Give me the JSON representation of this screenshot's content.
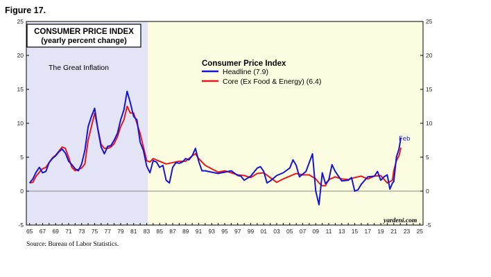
{
  "figure_label": "Figure 17.",
  "source": "Source: Bureau of Labor Statistics.",
  "chart_data": {
    "type": "line",
    "title": "CONSUMER PRICE INDEX",
    "subtitle": "(yearly percent change)",
    "legend_title": "Consumer Price Index",
    "legend_position": "top-center",
    "shaded_region_label": "The Great Inflation",
    "shaded_region": [
      1965,
      1983.2
    ],
    "credit": "yardeni.com",
    "end_annotation": "Feb",
    "ylim": [
      -5,
      25
    ],
    "xlim": [
      1964.5,
      2025.5
    ],
    "grid": false,
    "y_ticks": [
      "-5",
      "0",
      "5",
      "10",
      "15",
      "20",
      "25"
    ],
    "x_tick_labels": [
      "65",
      "67",
      "69",
      "71",
      "73",
      "75",
      "77",
      "79",
      "81",
      "83",
      "85",
      "87",
      "89",
      "91",
      "93",
      "95",
      "97",
      "99",
      "01",
      "03",
      "05",
      "07",
      "09",
      "11",
      "13",
      "15",
      "17",
      "19",
      "21",
      "23",
      "25"
    ],
    "colors": {
      "headline": "#1414d2",
      "core": "#e8161b",
      "shade_left": "#e4e4f7",
      "shade_right": "#fcfce0",
      "zero_line": "#888888"
    },
    "series": [
      {
        "name": "Headline (7.9)",
        "color": "#1414d2",
        "x": [
          1965.0,
          1965.5,
          1966.0,
          1966.5,
          1967.0,
          1967.5,
          1968.0,
          1968.5,
          1969.0,
          1969.5,
          1970.0,
          1970.5,
          1971.0,
          1971.5,
          1972.0,
          1972.5,
          1973.0,
          1973.5,
          1974.0,
          1974.5,
          1975.0,
          1975.5,
          1976.0,
          1976.5,
          1977.0,
          1977.5,
          1978.0,
          1978.5,
          1979.0,
          1979.5,
          1980.0,
          1980.5,
          1981.0,
          1981.5,
          1982.0,
          1982.5,
          1983.0,
          1983.5,
          1984.0,
          1984.5,
          1985.0,
          1985.5,
          1986.0,
          1986.5,
          1987.0,
          1987.5,
          1988.0,
          1988.5,
          1989.0,
          1989.5,
          1990.0,
          1990.5,
          1991.0,
          1991.5,
          1992.0,
          1993.0,
          1994.0,
          1995.0,
          1996.0,
          1997.0,
          1997.5,
          1998.0,
          1999.0,
          2000.0,
          2000.5,
          2001.0,
          2001.5,
          2002.0,
          2003.0,
          2004.0,
          2005.0,
          2005.5,
          2006.0,
          2006.5,
          2007.0,
          2007.5,
          2008.0,
          2008.5,
          2009.0,
          2009.5,
          2010.0,
          2010.5,
          2011.0,
          2011.5,
          2012.0,
          2013.0,
          2014.0,
          2014.5,
          2015.0,
          2015.5,
          2016.0,
          2017.0,
          2018.0,
          2018.5,
          2019.0,
          2019.5,
          2020.0,
          2020.4,
          2020.8,
          2021.0,
          2021.4,
          2021.8,
          2022.1
        ],
        "values": [
          1.2,
          1.8,
          2.8,
          3.5,
          2.7,
          2.9,
          4.2,
          4.8,
          5.2,
          5.8,
          6.2,
          5.6,
          4.4,
          3.9,
          3.3,
          3.0,
          4.0,
          6.0,
          9.5,
          11.0,
          12.2,
          9.1,
          6.5,
          5.5,
          6.6,
          6.7,
          7.5,
          8.5,
          10.5,
          12.0,
          14.7,
          13.0,
          11.0,
          10.5,
          7.2,
          6.0,
          3.7,
          2.7,
          4.5,
          4.3,
          3.5,
          3.8,
          1.6,
          1.2,
          3.5,
          4.2,
          4.1,
          4.3,
          4.8,
          4.6,
          5.2,
          6.3,
          4.4,
          3.0,
          3.0,
          2.8,
          2.6,
          2.8,
          3.0,
          2.3,
          2.2,
          1.6,
          2.2,
          3.4,
          3.6,
          2.9,
          1.2,
          1.5,
          2.3,
          2.7,
          3.4,
          4.6,
          3.8,
          2.1,
          2.5,
          2.9,
          4.2,
          5.5,
          0.0,
          -2.0,
          2.7,
          1.1,
          1.6,
          3.9,
          2.9,
          1.5,
          1.6,
          2.0,
          0.0,
          0.2,
          1.0,
          2.1,
          2.2,
          2.9,
          1.6,
          2.1,
          2.4,
          0.3,
          1.2,
          1.4,
          5.0,
          6.2,
          7.9
        ]
      },
      {
        "name": "Core (Ex Food & Energy) (6.4)",
        "color": "#e8161b",
        "x": [
          1965.0,
          1965.5,
          1966.0,
          1966.5,
          1967.0,
          1967.5,
          1968.0,
          1968.5,
          1969.0,
          1969.5,
          1970.0,
          1970.5,
          1971.0,
          1971.5,
          1972.0,
          1972.5,
          1973.0,
          1973.5,
          1974.0,
          1974.5,
          1975.0,
          1975.5,
          1976.0,
          1976.5,
          1977.0,
          1977.5,
          1978.0,
          1978.5,
          1979.0,
          1979.5,
          1980.0,
          1980.5,
          1981.0,
          1981.5,
          1982.0,
          1982.5,
          1983.0,
          1983.5,
          1984.0,
          1985.0,
          1986.0,
          1987.0,
          1988.0,
          1989.0,
          1990.0,
          1990.5,
          1991.0,
          1992.0,
          1993.0,
          1994.0,
          1995.0,
          1996.0,
          1997.0,
          1998.0,
          1999.0,
          2000.0,
          2001.0,
          2002.0,
          2003.0,
          2004.0,
          2005.0,
          2006.0,
          2007.0,
          2008.0,
          2009.0,
          2009.5,
          2010.0,
          2010.5,
          2011.0,
          2012.0,
          2013.0,
          2014.0,
          2015.0,
          2016.0,
          2017.0,
          2018.0,
          2019.0,
          2020.0,
          2020.4,
          2020.8,
          2021.0,
          2021.4,
          2021.8,
          2022.1
        ],
        "values": [
          1.2,
          1.3,
          2.2,
          2.8,
          3.3,
          3.5,
          4.2,
          4.9,
          5.3,
          5.9,
          6.5,
          6.3,
          5.0,
          3.5,
          3.0,
          3.2,
          3.4,
          4.0,
          7.5,
          9.5,
          11.5,
          9.2,
          6.9,
          6.3,
          6.3,
          6.5,
          7.0,
          8.0,
          9.5,
          10.5,
          12.5,
          11.5,
          11.5,
          10.0,
          8.5,
          6.5,
          4.5,
          4.3,
          4.8,
          4.4,
          4.0,
          4.2,
          4.4,
          4.4,
          5.2,
          5.5,
          4.8,
          3.8,
          3.3,
          2.8,
          3.0,
          2.7,
          2.4,
          2.3,
          2.0,
          2.6,
          2.7,
          2.0,
          1.3,
          1.8,
          2.2,
          2.6,
          2.4,
          2.4,
          1.8,
          1.2,
          0.8,
          0.8,
          1.7,
          2.1,
          1.8,
          1.7,
          2.0,
          2.2,
          1.8,
          2.2,
          2.3,
          1.2,
          1.4,
          1.6,
          3.0,
          4.5,
          5.2,
          6.4
        ]
      }
    ]
  }
}
